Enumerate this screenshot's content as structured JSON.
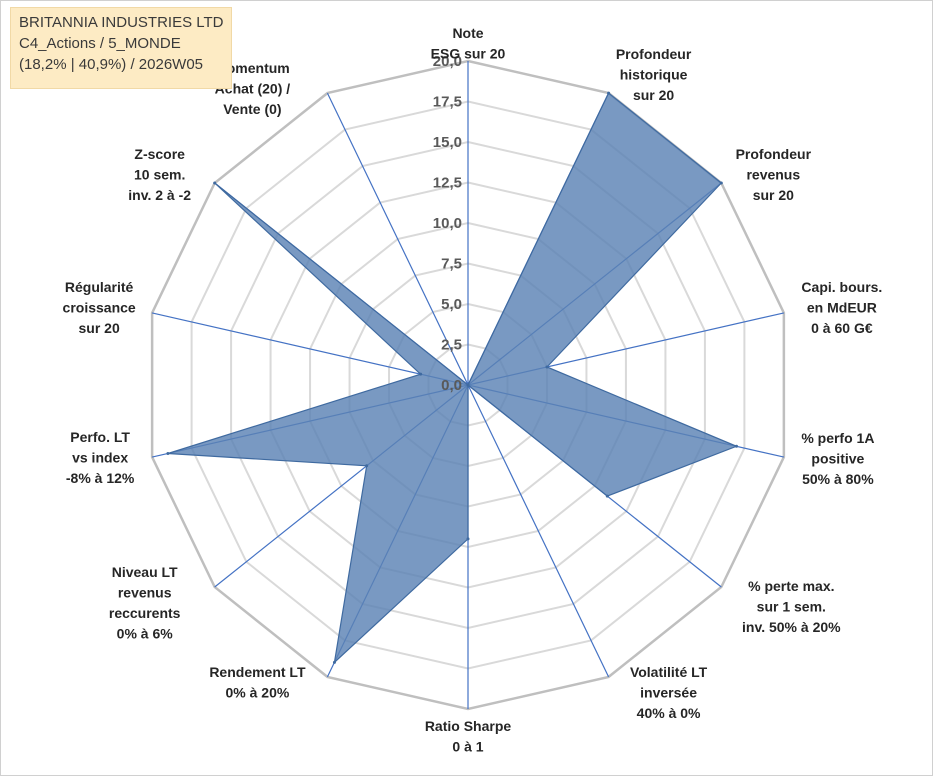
{
  "chart_data": {
    "type": "radar",
    "title": "BRITANNIA INDUSTRIES LTD",
    "title_lines": [
      "BRITANNIA INDUSTRIES LTD",
      "C4_Actions / 5_MONDE",
      "(18,2% | 40,9%) / 2026W05"
    ],
    "rmin": 0,
    "rmax": 20,
    "ticks": [
      "0,0",
      "2,5",
      "5,0",
      "7,5",
      "10,0",
      "12,5",
      "15,0",
      "17,5",
      "20,0"
    ],
    "tick_values": [
      0,
      2.5,
      5,
      7.5,
      10,
      12.5,
      15,
      17.5,
      20
    ],
    "categories": [
      {
        "lines": [
          "Note",
          "ESG sur 20"
        ]
      },
      {
        "lines": [
          "Profondeur",
          "historique",
          "sur 20"
        ]
      },
      {
        "lines": [
          "Profondeur",
          "revenus",
          "sur 20"
        ]
      },
      {
        "lines": [
          "Capi. bours.",
          "en MdEUR",
          "0 à 60 G€"
        ]
      },
      {
        "lines": [
          "% perfo 1A",
          "positive",
          "50% à 80%"
        ]
      },
      {
        "lines": [
          "% perte max.",
          "sur 1 sem.",
          "inv. 50% à 20%"
        ]
      },
      {
        "lines": [
          "Volatilité LT",
          "inversée",
          "40% à 0%"
        ]
      },
      {
        "lines": [
          "Ratio Sharpe",
          "0 à 1"
        ]
      },
      {
        "lines": [
          "Rendement LT",
          "0% à 20%"
        ]
      },
      {
        "lines": [
          "Niveau LT",
          "revenus",
          "reccurents",
          "0% à 6%"
        ]
      },
      {
        "lines": [
          "Perfo. LT",
          "vs index",
          "-8% à 12%"
        ]
      },
      {
        "lines": [
          "Régularité",
          "croissance",
          "sur 20"
        ]
      },
      {
        "lines": [
          "Z-score",
          "10 sem.",
          "inv. 2 à -2"
        ]
      },
      {
        "lines": [
          "Momentum",
          "Achat (20) /",
          "Vente (0)"
        ]
      }
    ],
    "series": [
      {
        "name": "BRITANNIA INDUSTRIES LTD",
        "values": [
          0,
          20,
          20,
          5,
          17,
          11,
          0,
          9.5,
          19,
          8,
          19,
          3,
          20,
          0
        ],
        "color": "#5b83b5"
      }
    ]
  }
}
